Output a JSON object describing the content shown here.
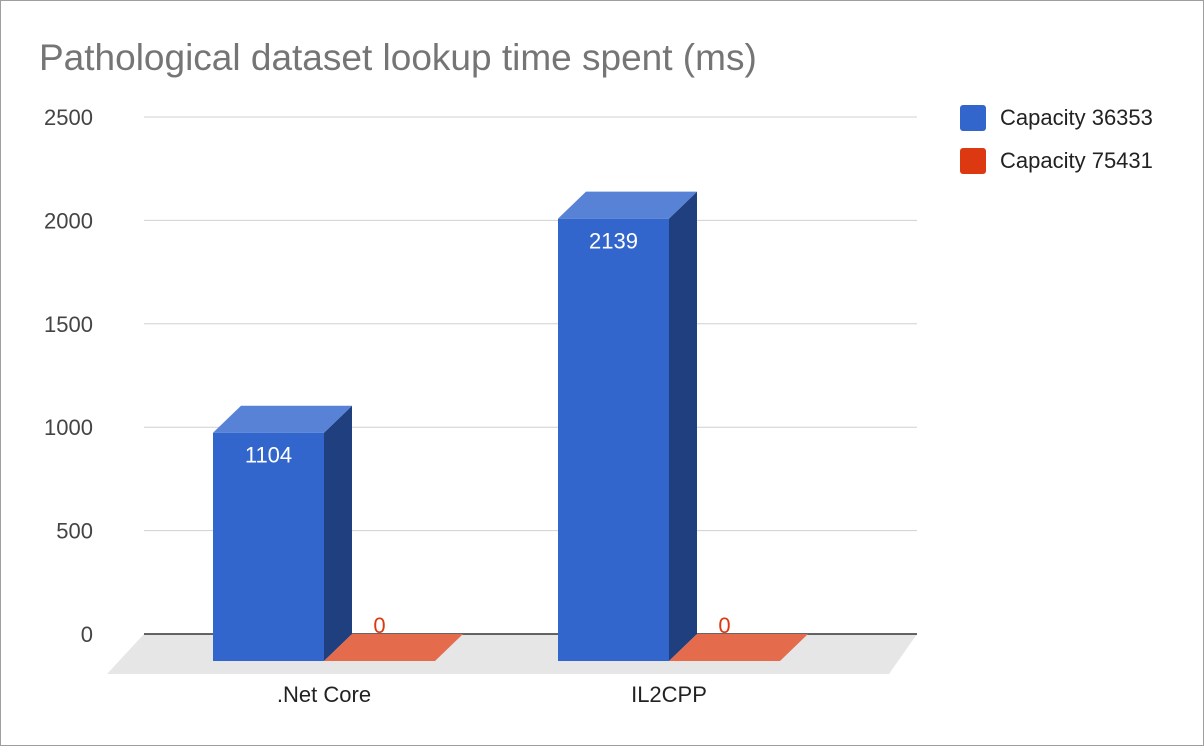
{
  "chart_data": {
    "type": "bar",
    "title": "Pathological dataset lookup time spent (ms)",
    "categories": [
      ".Net Core",
      "IL2CPP"
    ],
    "series": [
      {
        "name": "Capacity 36353",
        "values": [
          1104,
          2139
        ],
        "color": "#3366cc",
        "label_color": "#ffffff"
      },
      {
        "name": "Capacity 75431",
        "values": [
          0,
          0
        ],
        "color": "#dc3912",
        "label_color": "#dc3912"
      }
    ],
    "yticks": [
      "2500",
      "2000",
      "1500",
      "1000",
      "500",
      "0"
    ],
    "ylim": [
      0,
      2500
    ],
    "grid": true,
    "legend_position": "right",
    "style": "3d-column"
  }
}
